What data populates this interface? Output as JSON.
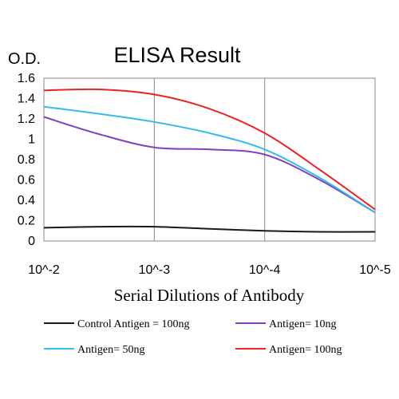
{
  "chart_data": {
    "type": "line",
    "title": "ELISA Result",
    "ylabel": "O.D.",
    "xlabel": "Serial Dilutions of Antibody",
    "x_tick_labels": [
      "10^-2",
      "10^-3",
      "10^-4",
      "10^-5"
    ],
    "x": [
      -2,
      -2.5,
      -3,
      -3.5,
      -4,
      -4.5,
      -5
    ],
    "xlim": [
      -2,
      -5
    ],
    "ylim": [
      0,
      1.6
    ],
    "y_ticks": [
      "0",
      "0.2",
      "0.4",
      "0.6",
      "0.8",
      "1",
      "1.2",
      "1.4",
      "1.6"
    ],
    "grid": "vertical",
    "legend_position": "bottom",
    "series": [
      {
        "name": "Control Antigen = 100ng",
        "color": "#1a1a1a",
        "values": [
          0.13,
          0.14,
          0.14,
          0.12,
          0.1,
          0.09,
          0.09
        ]
      },
      {
        "name": "Antigen= 10ng",
        "color": "#8040c0",
        "values": [
          1.22,
          1.05,
          0.92,
          0.9,
          0.85,
          0.6,
          0.28
        ]
      },
      {
        "name": "Antigen= 50ng",
        "color": "#33bbee",
        "values": [
          1.32,
          1.25,
          1.17,
          1.06,
          0.9,
          0.62,
          0.28
        ]
      },
      {
        "name": "Antigen= 100ng",
        "color": "#ee2222",
        "values": [
          1.48,
          1.49,
          1.44,
          1.3,
          1.06,
          0.7,
          0.31
        ]
      }
    ]
  }
}
